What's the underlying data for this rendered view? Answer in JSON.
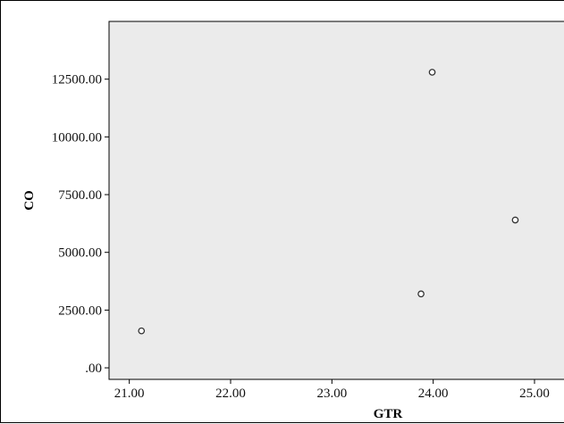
{
  "chart_data": {
    "type": "scatter",
    "title": "",
    "xlabel": "GTR",
    "ylabel": "CO",
    "xlim": [
      20.8,
      25.3
    ],
    "ylim": [
      -500,
      15000
    ],
    "x_ticks": [
      21.0,
      22.0,
      23.0,
      24.0,
      25.0
    ],
    "x_tick_labels": [
      "21.00",
      "22.00",
      "23.00",
      "24.00",
      "25.00"
    ],
    "y_ticks": [
      0,
      2500,
      5000,
      7500,
      10000,
      12500
    ],
    "y_tick_labels": [
      ".00",
      "2500.00",
      "5000.00",
      "7500.00",
      "10000.00",
      "12500.00"
    ],
    "grid": false,
    "legend": "none",
    "points": [
      {
        "x": 21.12,
        "y": 1600
      },
      {
        "x": 23.88,
        "y": 3200
      },
      {
        "x": 23.99,
        "y": 12800
      },
      {
        "x": 24.81,
        "y": 6400
      }
    ],
    "colors": {
      "plot_background": "#ebebeb",
      "marker_stroke": "#333333",
      "marker_fill": "#ffffff",
      "axis": "#000000"
    }
  }
}
